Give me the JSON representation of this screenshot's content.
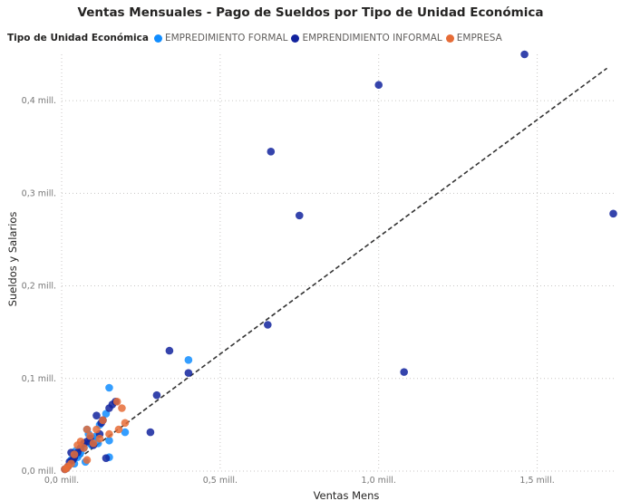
{
  "chart_data": {
    "type": "scatter",
    "title": "Ventas Mensuales - Pago de Sueldos por Tipo de Unidad Económica",
    "xlabel": "Ventas Mens",
    "ylabel": "Sueldos y Salarios",
    "xlim": [
      0,
      1750000
    ],
    "ylim": [
      0,
      450000
    ],
    "x_ticks": [
      0,
      500000,
      1000000,
      1500000
    ],
    "x_tick_labels": [
      "0,0 mill.",
      "0,5 mill.",
      "1,0 mill.",
      "1,5 mill."
    ],
    "y_ticks": [
      0,
      100000,
      200000,
      300000,
      400000
    ],
    "y_tick_labels": [
      "0,0 mill.",
      "0,1 mill.",
      "0,2 mill.",
      "0,3 mill.",
      "0,4 mill."
    ],
    "grid": true,
    "legend": {
      "title": "Tipo de Unidad Económica",
      "placement": "top-left"
    },
    "trendline": {
      "style": "dashed",
      "x": [
        0,
        1720000
      ],
      "y": [
        0,
        435000
      ]
    },
    "series": [
      {
        "name": "EMPREDIMIENTO FORMAL",
        "color": "#118dff",
        "points": [
          [
            150000,
            90000
          ],
          [
            400000,
            120000
          ],
          [
            200000,
            42000
          ],
          [
            150000,
            33000
          ],
          [
            150000,
            15000
          ],
          [
            140000,
            62000
          ],
          [
            130000,
            55000
          ],
          [
            120000,
            50000
          ],
          [
            110000,
            38000
          ],
          [
            100000,
            35000
          ],
          [
            90000,
            30000
          ],
          [
            80000,
            45000
          ],
          [
            70000,
            25000
          ],
          [
            60000,
            20000
          ],
          [
            50000,
            15000
          ],
          [
            40000,
            8000
          ],
          [
            30000,
            12000
          ],
          [
            20000,
            5000
          ],
          [
            85000,
            40000
          ],
          [
            95000,
            28000
          ],
          [
            115000,
            30000
          ],
          [
            75000,
            10000
          ],
          [
            55000,
            18000
          ],
          [
            45000,
            22000
          ]
        ]
      },
      {
        "name": "EMPRENDIMIENTO INFORMAL",
        "color": "#12239e",
        "points": [
          [
            1460000,
            450000
          ],
          [
            1000000,
            417000
          ],
          [
            660000,
            345000
          ],
          [
            750000,
            276000
          ],
          [
            1740000,
            278000
          ],
          [
            650000,
            158000
          ],
          [
            1080000,
            107000
          ],
          [
            340000,
            130000
          ],
          [
            400000,
            106000
          ],
          [
            300000,
            82000
          ],
          [
            280000,
            42000
          ],
          [
            170000,
            75000
          ],
          [
            150000,
            68000
          ],
          [
            130000,
            55000
          ],
          [
            110000,
            60000
          ],
          [
            90000,
            35000
          ],
          [
            70000,
            30000
          ],
          [
            60000,
            25000
          ],
          [
            50000,
            20000
          ],
          [
            40000,
            15000
          ],
          [
            30000,
            20000
          ],
          [
            25000,
            10000
          ],
          [
            20000,
            5000
          ],
          [
            15000,
            3000
          ],
          [
            10000,
            2000
          ],
          [
            140000,
            14000
          ],
          [
            120000,
            40000
          ],
          [
            100000,
            28000
          ],
          [
            80000,
            32000
          ],
          [
            160000,
            72000
          ],
          [
            125000,
            52000
          ],
          [
            35000,
            12000
          ]
        ]
      },
      {
        "name": "EMPRESA",
        "color": "#e66c37",
        "points": [
          [
            175000,
            75000
          ],
          [
            190000,
            68000
          ],
          [
            200000,
            52000
          ],
          [
            180000,
            45000
          ],
          [
            110000,
            45000
          ],
          [
            80000,
            45000
          ],
          [
            100000,
            30000
          ],
          [
            60000,
            32000
          ],
          [
            50000,
            28000
          ],
          [
            40000,
            18000
          ],
          [
            30000,
            8000
          ],
          [
            20000,
            5000
          ],
          [
            15000,
            3000
          ],
          [
            10000,
            2000
          ],
          [
            80000,
            12000
          ],
          [
            120000,
            35000
          ],
          [
            90000,
            38000
          ],
          [
            70000,
            25000
          ],
          [
            130000,
            55000
          ],
          [
            150000,
            40000
          ]
        ]
      }
    ]
  }
}
